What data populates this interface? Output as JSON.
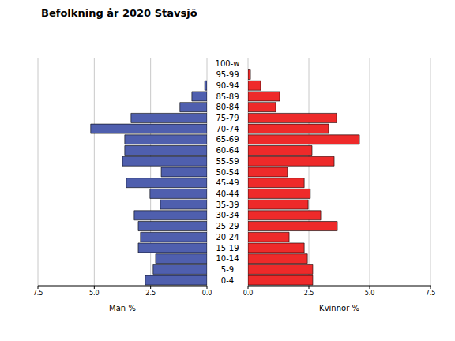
{
  "chart_data": [
    {
      "type": "bar",
      "title": "Befolkning år 2020 Stavsjö",
      "orientation": "horizontal",
      "grid": true,
      "x_label": "Män %",
      "color": "#4f5fae",
      "categories": [
        "0-4",
        "5-9",
        "10-14",
        "15-19",
        "20-24",
        "25-29",
        "30-34",
        "35-39",
        "40-44",
        "45-49",
        "50-54",
        "55-59",
        "60-64",
        "65-69",
        "70-74",
        "75-79",
        "80-84",
        "85-89",
        "90-94",
        "95-99",
        "100-w"
      ],
      "values": [
        2.74,
        2.39,
        2.28,
        3.05,
        2.95,
        3.05,
        3.23,
        2.07,
        2.53,
        3.58,
        2.03,
        3.75,
        3.65,
        3.65,
        5.16,
        3.37,
        1.2,
        0.67,
        0.1,
        0,
        0
      ],
      "xlim": [
        7.5,
        0
      ],
      "xticks": [
        7.5,
        {
          "value": 5,
          "label": "5.0"
        },
        2.5,
        {
          "value": 0,
          "label": "0.0"
        }
      ]
    },
    {
      "type": "bar",
      "orientation": "horizontal",
      "grid": true,
      "x_label": "Kvinnor %",
      "color": "#ee2a2a",
      "categories": [
        "0-4",
        "5-9",
        "10-14",
        "15-19",
        "20-24",
        "25-29",
        "30-34",
        "35-39",
        "40-44",
        "45-49",
        "50-54",
        "55-59",
        "60-64",
        "65-69",
        "70-74",
        "75-79",
        "80-84",
        "85-89",
        "90-94",
        "95-99",
        "100-w"
      ],
      "values": [
        2.66,
        2.66,
        2.44,
        2.31,
        1.69,
        3.67,
        2.99,
        2.47,
        2.56,
        2.31,
        1.62,
        3.54,
        2.63,
        4.58,
        3.31,
        3.64,
        1.14,
        1.3,
        0.52,
        0.1,
        0
      ],
      "xlim": [
        0,
        7.5
      ],
      "xticks": [
        {
          "value": 0,
          "label": "0.0"
        },
        2.5,
        {
          "value": 5,
          "label": "5.0"
        },
        7.5
      ]
    }
  ]
}
